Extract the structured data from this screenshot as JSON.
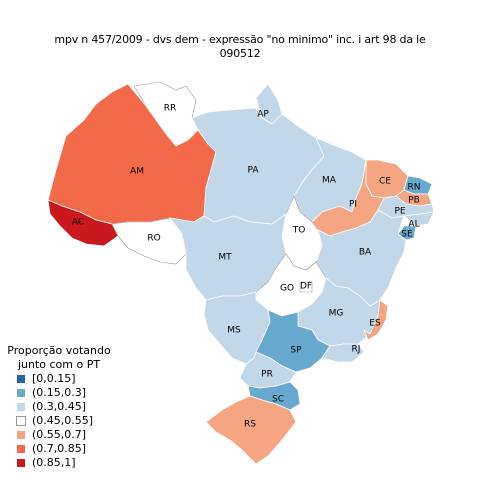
{
  "title": {
    "line1": "mpv  n  457/2009 - dvs dem - expressão  \"no minimo\" inc. i art 98 da le",
    "line2": "090512"
  },
  "legend": {
    "title_line1": "Proporção votando",
    "title_line2": "junto com o PT",
    "items": [
      {
        "label": "[0,0.15]",
        "color": "#2166ac"
      },
      {
        "label": "(0.15,0.3]",
        "color": "#67a9cf"
      },
      {
        "label": "(0.3,0.45]",
        "color": "#c2d7e8"
      },
      {
        "label": "(0.45,0.55]",
        "color": "#ffffff"
      },
      {
        "label": "(0.55,0.7]",
        "color": "#f4a582"
      },
      {
        "label": "(0.7,0.85]",
        "color": "#f36a4a"
      },
      {
        "label": "(0.85,1]",
        "color": "#ca181d"
      }
    ]
  },
  "states": [
    {
      "abbr": "RR",
      "class": "(0.45,0.55]"
    },
    {
      "abbr": "AP",
      "class": "(0.3,0.45]"
    },
    {
      "abbr": "AM",
      "class": "(0.7,0.85]"
    },
    {
      "abbr": "PA",
      "class": "(0.3,0.45]"
    },
    {
      "abbr": "MA",
      "class": "(0.3,0.45]"
    },
    {
      "abbr": "CE",
      "class": "(0.55,0.7]"
    },
    {
      "abbr": "RN",
      "class": "(0.15,0.3]"
    },
    {
      "abbr": "PB",
      "class": "(0.55,0.7]"
    },
    {
      "abbr": "PI",
      "class": "(0.55,0.7]"
    },
    {
      "abbr": "PE",
      "class": "(0.3,0.45]"
    },
    {
      "abbr": "AL",
      "class": "(0.3,0.45]"
    },
    {
      "abbr": "SE",
      "class": "(0.15,0.3]"
    },
    {
      "abbr": "AC",
      "class": "(0.85,1]"
    },
    {
      "abbr": "RO",
      "class": "(0.45,0.55]"
    },
    {
      "abbr": "TO",
      "class": "(0.45,0.55]"
    },
    {
      "abbr": "BA",
      "class": "(0.3,0.45]"
    },
    {
      "abbr": "MT",
      "class": "(0.3,0.45]"
    },
    {
      "abbr": "GO",
      "class": "(0.45,0.55]"
    },
    {
      "abbr": "DF",
      "class": "(0.45,0.55]"
    },
    {
      "abbr": "MG",
      "class": "(0.3,0.45]"
    },
    {
      "abbr": "ES",
      "class": "(0.55,0.7]"
    },
    {
      "abbr": "MS",
      "class": "(0.3,0.45]"
    },
    {
      "abbr": "SP",
      "class": "(0.15,0.3]"
    },
    {
      "abbr": "RJ",
      "class": "(0.3,0.45]"
    },
    {
      "abbr": "PR",
      "class": "(0.3,0.45]"
    },
    {
      "abbr": "SC",
      "class": "(0.15,0.3]"
    },
    {
      "abbr": "RS",
      "class": "(0.55,0.7]"
    }
  ]
}
